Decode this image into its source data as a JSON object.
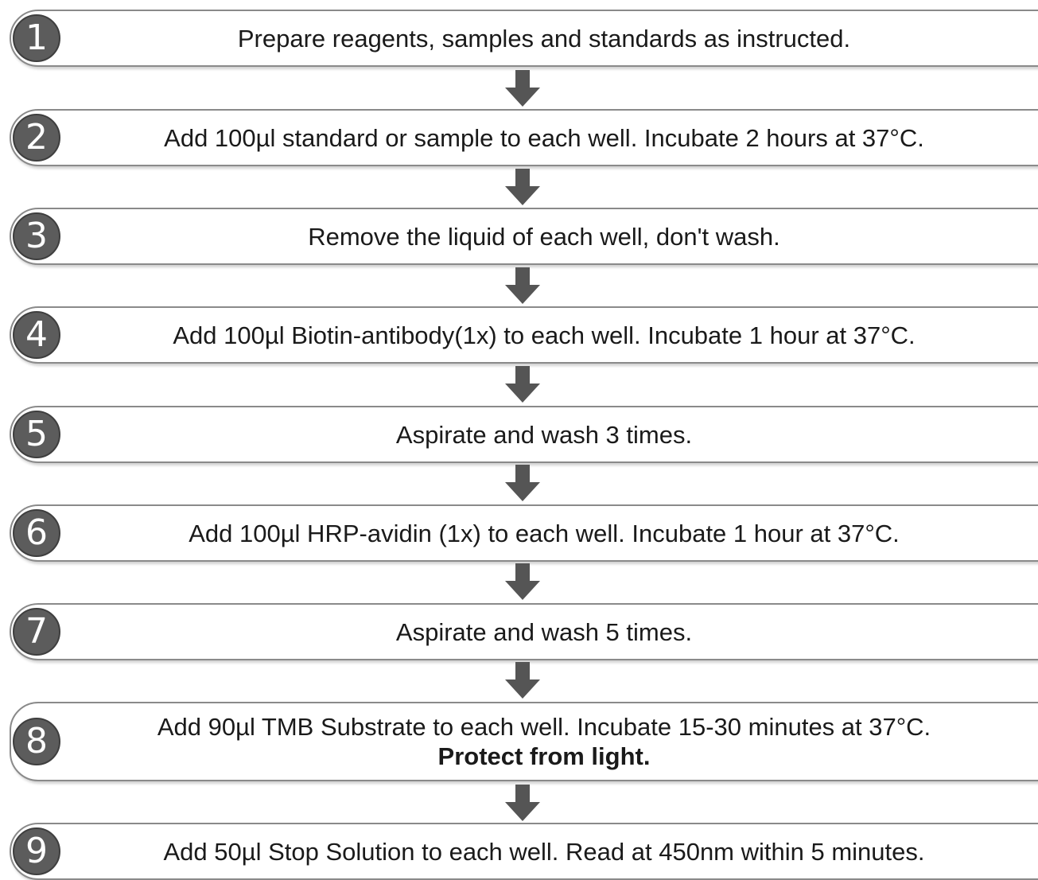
{
  "steps": [
    {
      "number": "1",
      "text": "Prepare reagents, samples and standards as instructed."
    },
    {
      "number": "2",
      "text": "Add 100µl standard or sample to each well. Incubate 2 hours at 37°C."
    },
    {
      "number": "3",
      "text": "Remove the liquid of each well, don't wash."
    },
    {
      "number": "4",
      "text": "Add 100µl Biotin-antibody(1x) to each well. Incubate 1 hour at 37°C."
    },
    {
      "number": "5",
      "text": "Aspirate and wash 3 times."
    },
    {
      "number": "6",
      "text": "Add 100µl HRP-avidin (1x) to each well. Incubate 1 hour at 37°C."
    },
    {
      "number": "7",
      "text": "Aspirate and wash 5 times."
    },
    {
      "number": "8",
      "text": "Add 90µl TMB Substrate to each well. Incubate 15-30 minutes at 37°C.",
      "note": "Protect from light."
    },
    {
      "number": "9",
      "text": "Add 50µl Stop Solution to each well. Read at 450nm within 5 minutes."
    }
  ],
  "colors": {
    "badge": "#5c5c5c",
    "arrow": "#555555",
    "border": "#8a8a8a",
    "text": "#1a1a1a"
  },
  "icons": {
    "connector": "arrow-down-icon"
  }
}
